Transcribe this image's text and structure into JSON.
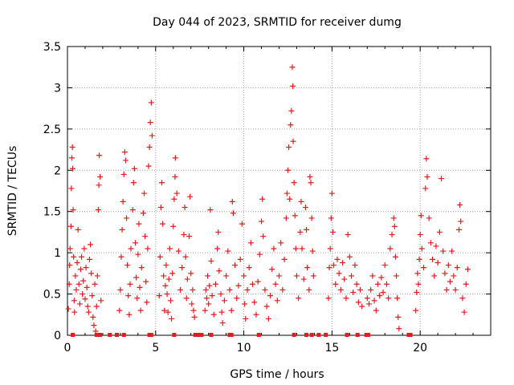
{
  "chart_data": {
    "type": "scatter",
    "title": "Day 044 of 2023, SRMTID for receiver dumg",
    "xlabel": "GPS time / hours",
    "ylabel": "SRMTID / TECUs",
    "xlim": [
      0,
      24
    ],
    "ylim": [
      0,
      3.5
    ],
    "x_ticks": [
      0,
      5,
      10,
      15,
      20
    ],
    "x_tick_labels": [
      "0",
      "5",
      "10",
      "15",
      "20"
    ],
    "y_ticks": [
      0,
      0.5,
      1,
      1.5,
      2,
      2.5,
      3,
      3.5
    ],
    "y_tick_labels": [
      "0",
      "0.5",
      "1",
      "1.5",
      "2",
      "2.5",
      "3",
      "3.5"
    ],
    "grid": true,
    "marker": "plus",
    "series": [
      {
        "name": "SRMTID",
        "color": "#e41a1c",
        "points": [
          [
            0.05,
            0.32
          ],
          [
            0.1,
            0.62
          ],
          [
            0.12,
            0.85
          ],
          [
            0.15,
            1.05
          ],
          [
            0.2,
            1.32
          ],
          [
            0.22,
            1.78
          ],
          [
            0.25,
            2.15
          ],
          [
            0.28,
            2.28
          ],
          [
            0.3,
            2.02
          ],
          [
            0.32,
            1.52
          ],
          [
            0.35,
            0.95
          ],
          [
            0.38,
            0.42
          ],
          [
            0.4,
            0.28
          ],
          [
            0.45,
            0.72
          ],
          [
            0.5,
            0.55
          ],
          [
            0.55,
            0.88
          ],
          [
            0.6,
            1.28
          ],
          [
            0.65,
            0.62
          ],
          [
            0.7,
            0.38
          ],
          [
            0.75,
            0.8
          ],
          [
            0.8,
            0.95
          ],
          [
            0.85,
            0.5
          ],
          [
            0.9,
            0.66
          ],
          [
            0.95,
            1.05
          ],
          [
            1.0,
            0.44
          ],
          [
            1.05,
            0.82
          ],
          [
            1.1,
            0.58
          ],
          [
            1.15,
            0.35
          ],
          [
            1.2,
            0.28
          ],
          [
            1.25,
            0.92
          ],
          [
            1.3,
            1.1
          ],
          [
            1.35,
            0.75
          ],
          [
            1.4,
            0.48
          ],
          [
            1.45,
            0.22
          ],
          [
            1.5,
            0.12
          ],
          [
            1.55,
            0.62
          ],
          [
            1.6,
            0.05
          ],
          [
            1.65,
            0.35
          ],
          [
            1.7,
            0.72
          ],
          [
            1.75,
            1.52
          ],
          [
            1.78,
            1.82
          ],
          [
            1.8,
            2.18
          ],
          [
            1.85,
            1.92
          ],
          [
            1.9,
            0.42
          ],
          [
            2.95,
            0.3
          ],
          [
            3.0,
            0.55
          ],
          [
            3.05,
            0.95
          ],
          [
            3.1,
            1.28
          ],
          [
            3.15,
            1.62
          ],
          [
            3.2,
            1.95
          ],
          [
            3.25,
            2.22
          ],
          [
            3.3,
            2.12
          ],
          [
            3.35,
            1.42
          ],
          [
            3.4,
            0.85
          ],
          [
            3.45,
            0.48
          ],
          [
            3.5,
            0.25
          ],
          [
            3.55,
            0.62
          ],
          [
            3.6,
            1.05
          ],
          [
            3.7,
            1.52
          ],
          [
            3.75,
            1.85
          ],
          [
            3.8,
            2.02
          ],
          [
            3.85,
            1.12
          ],
          [
            3.9,
            0.7
          ],
          [
            3.95,
            0.45
          ],
          [
            4.0,
            0.98
          ],
          [
            4.05,
            1.35
          ],
          [
            4.1,
            0.58
          ],
          [
            4.15,
            0.3
          ],
          [
            4.2,
            0.82
          ],
          [
            4.3,
            1.48
          ],
          [
            4.35,
            1.72
          ],
          [
            4.4,
            1.2
          ],
          [
            4.45,
            0.65
          ],
          [
            4.5,
            0.4
          ],
          [
            4.55,
            1.05
          ],
          [
            4.6,
            2.05
          ],
          [
            4.65,
            2.28
          ],
          [
            4.7,
            2.58
          ],
          [
            4.75,
            2.82
          ],
          [
            4.8,
            2.42
          ],
          [
            5.2,
            0.48
          ],
          [
            5.25,
            0.95
          ],
          [
            5.3,
            1.55
          ],
          [
            5.35,
            1.85
          ],
          [
            5.4,
            1.35
          ],
          [
            5.45,
            0.72
          ],
          [
            5.5,
            0.3
          ],
          [
            5.55,
            0.6
          ],
          [
            5.6,
            0.85
          ],
          [
            5.65,
            0.5
          ],
          [
            5.7,
            0.28
          ],
          [
            5.75,
            0.68
          ],
          [
            5.8,
            1.05
          ],
          [
            5.85,
            0.42
          ],
          [
            5.9,
            0.2
          ],
          [
            5.95,
            0.75
          ],
          [
            6.0,
            1.32
          ],
          [
            6.05,
            1.65
          ],
          [
            6.1,
            1.92
          ],
          [
            6.12,
            2.15
          ],
          [
            6.2,
            1.72
          ],
          [
            6.3,
            1.02
          ],
          [
            6.4,
            0.55
          ],
          [
            6.5,
            0.82
          ],
          [
            6.6,
            1.22
          ],
          [
            6.65,
            1.55
          ],
          [
            6.7,
            0.95
          ],
          [
            6.75,
            0.45
          ],
          [
            6.8,
            0.68
          ],
          [
            6.9,
            1.2
          ],
          [
            6.95,
            1.68
          ],
          [
            7.0,
            0.75
          ],
          [
            7.05,
            0.38
          ],
          [
            7.1,
            0.55
          ],
          [
            7.15,
            0.3
          ],
          [
            7.2,
            0.22
          ],
          [
            7.8,
            0.3
          ],
          [
            7.85,
            0.55
          ],
          [
            7.9,
            0.45
          ],
          [
            7.95,
            0.72
          ],
          [
            8.0,
            0.38
          ],
          [
            8.05,
            0.6
          ],
          [
            8.1,
            1.52
          ],
          [
            8.15,
            0.9
          ],
          [
            8.2,
            0.48
          ],
          [
            8.3,
            0.25
          ],
          [
            8.4,
            0.62
          ],
          [
            8.5,
            1.05
          ],
          [
            8.55,
            1.25
          ],
          [
            8.6,
            0.78
          ],
          [
            8.7,
            0.5
          ],
          [
            8.75,
            0.28
          ],
          [
            8.8,
            0.15
          ],
          [
            8.9,
            0.42
          ],
          [
            9.0,
            0.72
          ],
          [
            9.1,
            1.02
          ],
          [
            9.2,
            0.55
          ],
          [
            9.3,
            0.3
          ],
          [
            9.35,
            1.62
          ],
          [
            9.4,
            1.48
          ],
          [
            9.5,
            0.85
          ],
          [
            9.6,
            0.45
          ],
          [
            9.7,
            0.6
          ],
          [
            9.8,
            0.92
          ],
          [
            9.9,
            1.35
          ],
          [
            10.0,
            0.72
          ],
          [
            10.05,
            0.38
          ],
          [
            10.1,
            0.2
          ],
          [
            10.2,
            0.55
          ],
          [
            10.3,
            0.82
          ],
          [
            10.4,
            1.12
          ],
          [
            10.5,
            0.62
          ],
          [
            10.6,
            0.4
          ],
          [
            10.7,
            0.25
          ],
          [
            10.8,
            0.65
          ],
          [
            10.9,
            0.98
          ],
          [
            11.0,
            1.38
          ],
          [
            11.05,
            1.65
          ],
          [
            11.1,
            1.2
          ],
          [
            11.2,
            0.55
          ],
          [
            11.3,
            0.35
          ],
          [
            11.4,
            0.2
          ],
          [
            11.5,
            0.48
          ],
          [
            11.6,
            0.8
          ],
          [
            11.7,
            1.05
          ],
          [
            11.8,
            0.62
          ],
          [
            11.9,
            0.42
          ],
          [
            12.0,
            0.72
          ],
          [
            12.1,
            1.12
          ],
          [
            12.2,
            0.55
          ],
          [
            12.3,
            0.92
          ],
          [
            12.4,
            1.42
          ],
          [
            12.45,
            1.72
          ],
          [
            12.5,
            2.0
          ],
          [
            12.55,
            2.28
          ],
          [
            12.6,
            1.65
          ],
          [
            12.65,
            2.55
          ],
          [
            12.7,
            2.72
          ],
          [
            12.75,
            3.25
          ],
          [
            12.78,
            3.02
          ],
          [
            12.8,
            2.35
          ],
          [
            12.85,
            1.85
          ],
          [
            12.9,
            1.45
          ],
          [
            12.95,
            1.05
          ],
          [
            13.0,
            0.72
          ],
          [
            13.1,
            0.45
          ],
          [
            13.2,
            1.25
          ],
          [
            13.25,
            1.62
          ],
          [
            13.3,
            1.05
          ],
          [
            13.4,
            0.68
          ],
          [
            13.5,
            1.55
          ],
          [
            13.55,
            1.28
          ],
          [
            13.6,
            0.82
          ],
          [
            13.7,
            0.55
          ],
          [
            13.75,
            1.92
          ],
          [
            13.8,
            1.85
          ],
          [
            13.85,
            1.42
          ],
          [
            13.9,
            1.02
          ],
          [
            13.95,
            0.72
          ],
          [
            14.8,
            0.45
          ],
          [
            14.85,
            0.82
          ],
          [
            14.9,
            1.05
          ],
          [
            14.95,
            1.42
          ],
          [
            15.0,
            1.72
          ],
          [
            15.05,
            1.25
          ],
          [
            15.1,
            0.85
          ],
          [
            15.2,
            0.62
          ],
          [
            15.3,
            0.92
          ],
          [
            15.4,
            0.75
          ],
          [
            15.5,
            0.55
          ],
          [
            15.6,
            0.88
          ],
          [
            15.7,
            0.68
          ],
          [
            15.8,
            0.45
          ],
          [
            15.9,
            1.22
          ],
          [
            16.0,
            0.95
          ],
          [
            16.1,
            0.72
          ],
          [
            16.2,
            0.52
          ],
          [
            16.3,
            0.85
          ],
          [
            16.4,
            0.62
          ],
          [
            16.5,
            0.4
          ],
          [
            16.6,
            0.55
          ],
          [
            16.7,
            0.35
          ],
          [
            17.0,
            0.45
          ],
          [
            17.1,
            0.38
          ],
          [
            17.2,
            0.55
          ],
          [
            17.3,
            0.72
          ],
          [
            17.4,
            0.42
          ],
          [
            17.5,
            0.3
          ],
          [
            17.6,
            0.62
          ],
          [
            17.7,
            0.48
          ],
          [
            17.8,
            0.7
          ],
          [
            17.9,
            0.52
          ],
          [
            18.0,
            0.85
          ],
          [
            18.1,
            0.62
          ],
          [
            18.2,
            0.45
          ],
          [
            18.3,
            1.05
          ],
          [
            18.4,
            1.22
          ],
          [
            18.5,
            1.42
          ],
          [
            18.55,
            1.32
          ],
          [
            18.6,
            0.95
          ],
          [
            18.65,
            0.72
          ],
          [
            18.7,
            0.45
          ],
          [
            18.75,
            0.22
          ],
          [
            18.8,
            0.08
          ],
          [
            19.75,
            0.3
          ],
          [
            19.8,
            0.52
          ],
          [
            19.85,
            0.75
          ],
          [
            19.9,
            0.62
          ],
          [
            19.95,
            0.92
          ],
          [
            20.0,
            1.22
          ],
          [
            20.05,
            1.45
          ],
          [
            20.1,
            1.05
          ],
          [
            20.2,
            0.82
          ],
          [
            20.3,
            1.78
          ],
          [
            20.35,
            2.14
          ],
          [
            20.4,
            1.92
          ],
          [
            20.5,
            1.42
          ],
          [
            20.6,
            1.12
          ],
          [
            20.7,
            0.92
          ],
          [
            20.8,
            0.72
          ],
          [
            20.9,
            1.08
          ],
          [
            21.0,
            0.88
          ],
          [
            21.1,
            1.25
          ],
          [
            21.2,
            1.9
          ],
          [
            21.3,
            1.02
          ],
          [
            21.4,
            0.75
          ],
          [
            21.5,
            0.55
          ],
          [
            21.6,
            0.85
          ],
          [
            21.7,
            0.65
          ],
          [
            21.8,
            1.02
          ],
          [
            21.9,
            0.72
          ],
          [
            22.0,
            0.55
          ],
          [
            22.1,
            0.82
          ],
          [
            22.2,
            1.28
          ],
          [
            22.25,
            1.58
          ],
          [
            22.3,
            1.38
          ],
          [
            22.4,
            0.45
          ],
          [
            22.5,
            0.28
          ],
          [
            22.6,
            0.62
          ],
          [
            22.7,
            0.8
          ]
        ],
        "zero_markers": [
          [
            0.3,
            0.0
          ],
          [
            1.65,
            0.0
          ],
          [
            1.85,
            0.0
          ],
          [
            2.4,
            0.0
          ],
          [
            2.8,
            0.0
          ],
          [
            3.2,
            0.0
          ],
          [
            4.65,
            0.0
          ],
          [
            4.75,
            0.0
          ],
          [
            6.05,
            0.0
          ],
          [
            7.25,
            0.0
          ],
          [
            7.45,
            0.0
          ],
          [
            7.6,
            0.0
          ],
          [
            8.15,
            0.0
          ],
          [
            9.2,
            0.0
          ],
          [
            9.3,
            0.0
          ],
          [
            10.85,
            0.0
          ],
          [
            12.85,
            0.0
          ],
          [
            13.55,
            0.0
          ],
          [
            13.85,
            0.0
          ],
          [
            14.25,
            0.0
          ],
          [
            14.65,
            0.0
          ],
          [
            15.85,
            0.0
          ],
          [
            16.45,
            0.0
          ],
          [
            16.95,
            0.0
          ],
          [
            17.05,
            0.0
          ],
          [
            19.35,
            0.0
          ],
          [
            19.45,
            0.0
          ]
        ]
      }
    ]
  }
}
